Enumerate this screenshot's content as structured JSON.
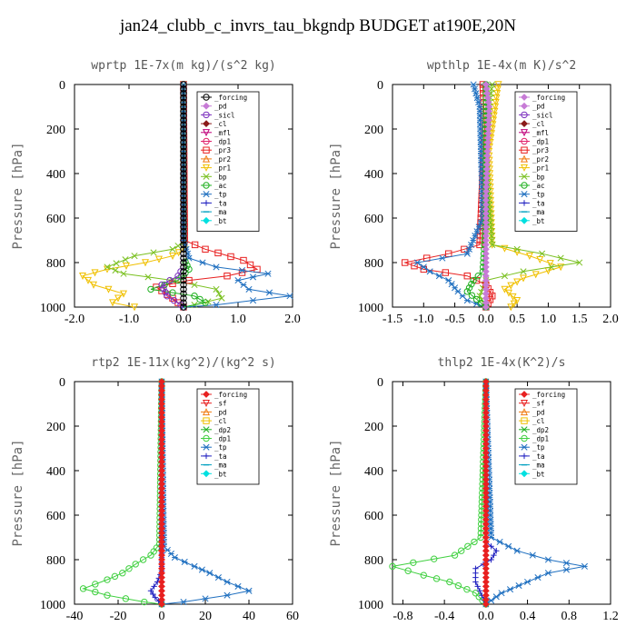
{
  "figure": {
    "title": "jan24_clubb_c_invrs_tau_bkgndp  BUDGET at190E,20N"
  },
  "chart_data": [
    {
      "type": "line",
      "title": "wprtp   1E-7x(m kg)/(s^2 kg)",
      "ylabel": "Pressure [hPa]",
      "xlabel": "",
      "xlim": [
        -2.0,
        2.0
      ],
      "ylim": [
        1000,
        0
      ],
      "xticks": [
        "-2.0",
        "-1.0",
        "0.0",
        "1.0",
        "2.0"
      ],
      "xtick_values": [
        -2,
        -1,
        0,
        1,
        2
      ],
      "yticks": [
        "0",
        "200",
        "400",
        "600",
        "800",
        "1000"
      ],
      "ytick_values": [
        0,
        200,
        400,
        600,
        800,
        1000
      ],
      "grid": false,
      "legend_position": "top-right",
      "legend": [
        {
          "name": "_forcing",
          "color": "#000000",
          "marker": "circle"
        },
        {
          "name": "_pd",
          "color": "#c77bd6",
          "marker": "diamond"
        },
        {
          "name": "_sicl",
          "color": "#7b2fbe",
          "marker": "circle"
        },
        {
          "name": "_cl",
          "color": "#8b1a1a",
          "marker": "diamond"
        },
        {
          "name": "_mfl",
          "color": "#c0007a",
          "marker": "triangle-down"
        },
        {
          "name": "_dp1",
          "color": "#e0206a",
          "marker": "circle"
        },
        {
          "name": "_pr3",
          "color": "#e82020",
          "marker": "square"
        },
        {
          "name": "_pr2",
          "color": "#f07a10",
          "marker": "triangle"
        },
        {
          "name": "_pr1",
          "color": "#f0c000",
          "marker": "triangle-down"
        },
        {
          "name": "_bp",
          "color": "#7ac020",
          "marker": "x"
        },
        {
          "name": "_ac",
          "color": "#20b020",
          "marker": "circle"
        },
        {
          "name": "_tp",
          "color": "#2070c0",
          "marker": "star"
        },
        {
          "name": "_ta",
          "color": "#2020c0",
          "marker": "plus"
        },
        {
          "name": "_ma",
          "color": "#00a0c0",
          "marker": "dash"
        },
        {
          "name": "_bt",
          "color": "#00e0e0",
          "marker": "diamond"
        }
      ],
      "series": [
        {
          "name": "_pr1",
          "color": "#f0c000",
          "marker": "triangle-down",
          "x": [
            0.0,
            0.0,
            0.02,
            -0.2,
            -0.7,
            -1.4,
            -1.85,
            -1.65,
            -1.1,
            -1.3,
            -0.9
          ],
          "y": [
            0,
            700,
            740,
            770,
            800,
            830,
            860,
            900,
            940,
            980,
            1000
          ]
        },
        {
          "name": "_bp",
          "color": "#7ac020",
          "marker": "x",
          "x": [
            0.0,
            0.0,
            -0.2,
            -0.9,
            -1.4,
            -1.1,
            -0.2,
            0.6,
            0.7,
            0.2,
            0.0
          ],
          "y": [
            0,
            710,
            740,
            770,
            820,
            850,
            880,
            920,
            960,
            990,
            1000
          ]
        },
        {
          "name": "_pr3",
          "color": "#e82020",
          "marker": "square",
          "x": [
            0.0,
            0.02,
            0.4,
            1.1,
            1.35,
            0.8,
            0.1,
            -0.5,
            -0.2,
            0.0
          ],
          "y": [
            0,
            700,
            740,
            790,
            830,
            860,
            880,
            910,
            960,
            1000
          ]
        },
        {
          "name": "_tp",
          "color": "#2070c0",
          "marker": "star",
          "x": [
            0.0,
            0.0,
            0.1,
            0.6,
            1.55,
            1.0,
            1.2,
            1.95,
            0.6,
            0.0
          ],
          "y": [
            0,
            700,
            780,
            820,
            850,
            880,
            920,
            950,
            990,
            1000
          ]
        },
        {
          "name": "_ac",
          "color": "#20b020",
          "marker": "circle",
          "x": [
            0.0,
            0.0,
            0.1,
            -0.1,
            -0.6,
            0.2,
            0.4,
            0.0
          ],
          "y": [
            0,
            780,
            830,
            880,
            920,
            950,
            980,
            1000
          ]
        },
        {
          "name": "_sicl",
          "color": "#7b2fbe",
          "marker": "circle",
          "x": [
            0.0,
            0.0,
            -0.1,
            -0.4,
            -0.3,
            -0.05,
            0.0
          ],
          "y": [
            0,
            820,
            860,
            900,
            950,
            990,
            1000
          ]
        },
        {
          "name": "_forcing",
          "color": "#000000",
          "marker": "circle",
          "x": [
            0.0,
            0.0,
            0.0
          ],
          "y": [
            0,
            500,
            1000
          ]
        }
      ]
    },
    {
      "type": "line",
      "title": "wpthlp   1E-4x(m K)/s^2",
      "ylabel": "Pressure [hPa]",
      "xlabel": "",
      "xlim": [
        -1.5,
        2.0
      ],
      "ylim": [
        1000,
        0
      ],
      "xticks": [
        "-1.5",
        "-1.0",
        "-0.5",
        "0.0",
        "0.5",
        "1.0",
        "1.5",
        "2.0"
      ],
      "xtick_values": [
        -1.5,
        -1.0,
        -0.5,
        0.0,
        0.5,
        1.0,
        1.5,
        2.0
      ],
      "yticks": [
        "0",
        "200",
        "400",
        "600",
        "800",
        "1000"
      ],
      "ytick_values": [
        0,
        200,
        400,
        600,
        800,
        1000
      ],
      "grid": false,
      "legend_position": "top-right",
      "legend": [
        {
          "name": "_forcing",
          "color": "#c77bd6",
          "marker": "diamond"
        },
        {
          "name": "_pd",
          "color": "#c77bd6",
          "marker": "diamond"
        },
        {
          "name": "_sicl",
          "color": "#7b2fbe",
          "marker": "circle"
        },
        {
          "name": "_cl",
          "color": "#8b1a1a",
          "marker": "diamond"
        },
        {
          "name": "_mfl",
          "color": "#c0007a",
          "marker": "triangle-down"
        },
        {
          "name": "_dp1",
          "color": "#e0206a",
          "marker": "circle"
        },
        {
          "name": "_pr3",
          "color": "#e82020",
          "marker": "square"
        },
        {
          "name": "_pr2",
          "color": "#f07a10",
          "marker": "triangle"
        },
        {
          "name": "_pr1",
          "color": "#f0c000",
          "marker": "triangle-down"
        },
        {
          "name": "_bp",
          "color": "#7ac020",
          "marker": "x"
        },
        {
          "name": "_ac",
          "color": "#20b020",
          "marker": "circle"
        },
        {
          "name": "_tp",
          "color": "#2070c0",
          "marker": "star"
        },
        {
          "name": "_ta",
          "color": "#2020c0",
          "marker": "plus"
        },
        {
          "name": "_ma",
          "color": "#00a0c0",
          "marker": "dash"
        },
        {
          "name": "_bt",
          "color": "#00e0e0",
          "marker": "diamond"
        }
      ],
      "series": [
        {
          "name": "_pr1",
          "color": "#f0c000",
          "marker": "triangle-down",
          "x": [
            0.2,
            0.15,
            0.05,
            0.1,
            0.7,
            1.2,
            0.6,
            0.3,
            0.5,
            0.4
          ],
          "y": [
            0,
            100,
            300,
            720,
            770,
            820,
            870,
            920,
            970,
            1000
          ]
        },
        {
          "name": "_bp",
          "color": "#7ac020",
          "marker": "x",
          "x": [
            0.1,
            0.05,
            0.0,
            0.1,
            0.9,
            1.5,
            0.6,
            0.0,
            -0.1,
            0.0
          ],
          "y": [
            0,
            100,
            300,
            720,
            760,
            800,
            840,
            880,
            950,
            1000
          ]
        },
        {
          "name": "_pr3",
          "color": "#e82020",
          "marker": "square",
          "x": [
            -0.05,
            -0.02,
            -0.1,
            -0.6,
            -1.3,
            -1.0,
            -0.3,
            0.0,
            0.1,
            0.0
          ],
          "y": [
            0,
            200,
            720,
            760,
            800,
            830,
            860,
            900,
            950,
            1000
          ]
        },
        {
          "name": "_tp",
          "color": "#2070c0",
          "marker": "star",
          "x": [
            -0.2,
            -0.1,
            -0.05,
            -0.3,
            -1.1,
            -0.9,
            -0.6,
            -0.45,
            -0.3,
            0.0
          ],
          "y": [
            0,
            100,
            600,
            760,
            800,
            840,
            880,
            930,
            970,
            1000
          ]
        },
        {
          "name": "_ac",
          "color": "#20b020",
          "marker": "circle",
          "x": [
            0.0,
            0.0,
            -0.05,
            -0.2,
            -0.3,
            0.0
          ],
          "y": [
            0,
            600,
            840,
            880,
            930,
            1000
          ]
        },
        {
          "name": "_forcing",
          "color": "#c77bd6",
          "marker": "diamond",
          "x": [
            0.0,
            0.05,
            0.0,
            0.0
          ],
          "y": [
            0,
            100,
            500,
            1000
          ]
        }
      ]
    },
    {
      "type": "line",
      "title": "rtp2   1E-11x(kg^2)/(kg^2 s)",
      "ylabel": "Pressure [hPa]",
      "xlabel": "",
      "xlim": [
        -40,
        60
      ],
      "ylim": [
        1000,
        0
      ],
      "xticks": [
        "-40",
        "-20",
        "0",
        "20",
        "40",
        "60"
      ],
      "xtick_values": [
        -40,
        -20,
        0,
        20,
        40,
        60
      ],
      "yticks": [
        "0",
        "200",
        "400",
        "600",
        "800",
        "1000"
      ],
      "ytick_values": [
        0,
        200,
        400,
        600,
        800,
        1000
      ],
      "grid": false,
      "legend_position": "top-right",
      "legend": [
        {
          "name": "_forcing",
          "color": "#e82020",
          "marker": "diamond"
        },
        {
          "name": "_sf",
          "color": "#e82020",
          "marker": "triangle-down"
        },
        {
          "name": "_pd",
          "color": "#f07a10",
          "marker": "triangle"
        },
        {
          "name": "_cl",
          "color": "#f0c000",
          "marker": "square"
        },
        {
          "name": "_dp2",
          "color": "#20b020",
          "marker": "x"
        },
        {
          "name": "_dp1",
          "color": "#40d040",
          "marker": "circle"
        },
        {
          "name": "_tp",
          "color": "#2070c0",
          "marker": "star"
        },
        {
          "name": "_ta",
          "color": "#2020c0",
          "marker": "plus"
        },
        {
          "name": "_ma",
          "color": "#00a0c0",
          "marker": "dash"
        },
        {
          "name": "_bt",
          "color": "#00e0e0",
          "marker": "diamond"
        }
      ],
      "series": [
        {
          "name": "_dp1",
          "color": "#40d040",
          "marker": "circle",
          "x": [
            0.0,
            -1,
            -5,
            -12,
            -18,
            -25,
            -36,
            -25,
            -8,
            0
          ],
          "y": [
            0,
            730,
            780,
            820,
            860,
            890,
            930,
            960,
            990,
            1000
          ]
        },
        {
          "name": "_tp",
          "color": "#2070c0",
          "marker": "star",
          "x": [
            0.0,
            1,
            6,
            15,
            22,
            30,
            40,
            30,
            10,
            0
          ],
          "y": [
            0,
            740,
            790,
            830,
            860,
            900,
            940,
            960,
            990,
            1000
          ]
        },
        {
          "name": "_ta",
          "color": "#2020c0",
          "marker": "plus",
          "x": [
            0.0,
            0,
            -2,
            -5,
            -3,
            0
          ],
          "y": [
            0,
            850,
            900,
            940,
            970,
            1000
          ]
        },
        {
          "name": "_forcing",
          "color": "#e82020",
          "marker": "diamond",
          "x": [
            0.0,
            0.0,
            0.0
          ],
          "y": [
            0,
            500,
            1000
          ]
        }
      ]
    },
    {
      "type": "line",
      "title": "thlp2   1E-4x(K^2)/s",
      "ylabel": "Pressure [hPa]",
      "xlabel": "",
      "xlim": [
        -0.9,
        1.2
      ],
      "ylim": [
        1000,
        0
      ],
      "xticks": [
        "-0.8",
        "-0.4",
        "0.0",
        "0.4",
        "0.8",
        "1.2"
      ],
      "xtick_values": [
        -0.8,
        -0.4,
        0.0,
        0.4,
        0.8,
        1.2
      ],
      "yticks": [
        "0",
        "200",
        "400",
        "600",
        "800",
        "1000"
      ],
      "ytick_values": [
        0,
        200,
        400,
        600,
        800,
        1000
      ],
      "grid": false,
      "legend_position": "top-right",
      "legend": [
        {
          "name": "_forcing",
          "color": "#e82020",
          "marker": "diamond"
        },
        {
          "name": "_sf",
          "color": "#e82020",
          "marker": "triangle-down"
        },
        {
          "name": "_pd",
          "color": "#f07a10",
          "marker": "triangle"
        },
        {
          "name": "_cl",
          "color": "#f0c000",
          "marker": "square"
        },
        {
          "name": "_dp2",
          "color": "#20b020",
          "marker": "x"
        },
        {
          "name": "_dp1",
          "color": "#40d040",
          "marker": "circle"
        },
        {
          "name": "_tp",
          "color": "#2070c0",
          "marker": "star"
        },
        {
          "name": "_ta",
          "color": "#2020c0",
          "marker": "plus"
        },
        {
          "name": "_ma",
          "color": "#00a0c0",
          "marker": "dash"
        },
        {
          "name": "_bt",
          "color": "#00e0e0",
          "marker": "diamond"
        }
      ],
      "series": [
        {
          "name": "_dp1",
          "color": "#40d040",
          "marker": "circle",
          "x": [
            0.0,
            -0.05,
            -0.3,
            -0.9,
            -0.6,
            -0.35,
            -0.1,
            0.0
          ],
          "y": [
            0,
            700,
            780,
            830,
            870,
            900,
            950,
            1000
          ]
        },
        {
          "name": "_tp",
          "color": "#2070c0",
          "marker": "star",
          "x": [
            0.0,
            0.05,
            0.3,
            0.6,
            0.95,
            0.6,
            0.4,
            0.15,
            0.0
          ],
          "y": [
            0,
            700,
            760,
            800,
            830,
            860,
            900,
            950,
            1000
          ]
        },
        {
          "name": "_ta",
          "color": "#2020c0",
          "marker": "plus",
          "x": [
            0.0,
            0.0,
            0.1,
            0.05,
            -0.1,
            -0.1,
            0.0
          ],
          "y": [
            0,
            720,
            760,
            800,
            840,
            900,
            1000
          ]
        },
        {
          "name": "_forcing",
          "color": "#e82020",
          "marker": "diamond",
          "x": [
            0.0,
            0.0,
            0.0
          ],
          "y": [
            0,
            500,
            1000
          ]
        }
      ]
    }
  ]
}
